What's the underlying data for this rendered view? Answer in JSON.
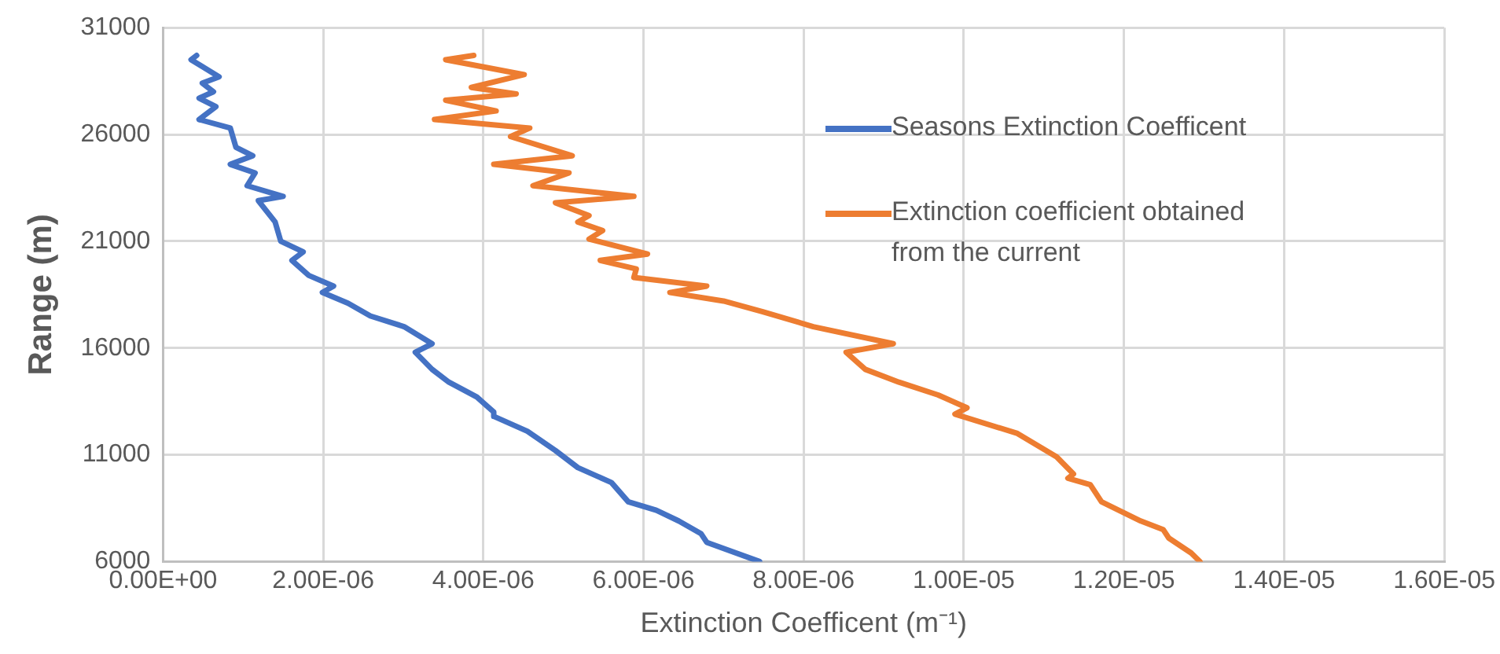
{
  "chart_data": {
    "type": "line",
    "xlabel": "Extinction Coefficent (m⁻¹)",
    "ylabel": "Range (m)",
    "xlim": [
      0,
      1.6e-05
    ],
    "ylim": [
      6000,
      31000
    ],
    "xticks": [
      {
        "value": 0,
        "label": "0.00E+00"
      },
      {
        "value": 2e-06,
        "label": "2.00E-06"
      },
      {
        "value": 4e-06,
        "label": "4.00E-06"
      },
      {
        "value": 6e-06,
        "label": "6.00E-06"
      },
      {
        "value": 8e-06,
        "label": "8.00E-06"
      },
      {
        "value": 1e-05,
        "label": "1.00E-05"
      },
      {
        "value": 1.2e-05,
        "label": "1.20E-05"
      },
      {
        "value": 1.4e-05,
        "label": "1.40E-05"
      },
      {
        "value": 1.6e-05,
        "label": "1.60E-05"
      }
    ],
    "yticks": [
      6000,
      11000,
      16000,
      21000,
      26000,
      31000
    ],
    "grid": true,
    "legend": "right",
    "marker": "none",
    "line_style": "solid",
    "series": [
      {
        "name": "Seasons Extinction Coefficent",
        "color": "#4472c4",
        "x": [
          4.2e-07,
          3.5e-07,
          7e-07,
          4.9e-07,
          6.3e-07,
          4.5e-07,
          6.6e-07,
          4.5e-07,
          8.4e-07,
          9.1e-07,
          1.12e-06,
          8.4e-07,
          1.15e-06,
          1.05e-06,
          1.5e-06,
          1.19e-06,
          1.4e-06,
          1.47e-06,
          1.75e-06,
          1.61e-06,
          1.82e-06,
          2.13e-06,
          1.99e-06,
          2.31e-06,
          2.59e-06,
          3.01e-06,
          3.36e-06,
          3.15e-06,
          3.36e-06,
          3.57e-06,
          3.92e-06,
          4.13e-06,
          4.13e-06,
          4.55e-06,
          4.9e-06,
          5.18e-06,
          5.6e-06,
          5.81e-06,
          6.16e-06,
          6.44e-06,
          6.72e-06,
          6.79e-06,
          7.45e-06
        ],
        "values": [
          29700,
          29500,
          28700,
          28400,
          28000,
          27700,
          27300,
          26700,
          26300,
          25400,
          25000,
          24600,
          24200,
          23600,
          23100,
          22900,
          21900,
          21000,
          20500,
          20100,
          19400,
          18900,
          18600,
          18100,
          17500,
          17000,
          16200,
          15800,
          15000,
          14400,
          13700,
          13000,
          12800,
          12100,
          11200,
          10400,
          9700,
          8800,
          8400,
          7900,
          7300,
          6900,
          6000
        ]
      },
      {
        "name": "Extinction coefficient obtained from the current",
        "color": "#ed7d31",
        "x": [
          3.88e-06,
          3.53e-06,
          4.51e-06,
          3.85e-06,
          4.41e-06,
          3.53e-06,
          4.16e-06,
          3.39e-06,
          4.58e-06,
          4.34e-06,
          5.11e-06,
          4.13e-06,
          5.07e-06,
          4.62e-06,
          5.88e-06,
          4.9e-06,
          5.32e-06,
          5.18e-06,
          5.49e-06,
          5.32e-06,
          6.05e-06,
          5.46e-06,
          5.91e-06,
          5.88e-06,
          6.79e-06,
          6.33e-06,
          7e-06,
          7.49e-06,
          8.12e-06,
          9.12e-06,
          8.53e-06,
          8.77e-06,
          9.19e-06,
          9.68e-06,
          1.004e-05,
          9.89e-06,
          1.067e-05,
          1.116e-05,
          1.137e-05,
          1.13e-05,
          1.158e-05,
          1.172e-05,
          1.221e-05,
          1.249e-05,
          1.256e-05,
          1.284e-05,
          1.295e-05
        ],
        "values": [
          29700,
          29500,
          28800,
          28200,
          27900,
          27600,
          27100,
          26700,
          26300,
          25900,
          25000,
          24600,
          24200,
          23600,
          23100,
          22800,
          22200,
          21900,
          21500,
          21100,
          20400,
          20100,
          19700,
          19300,
          18900,
          18600,
          18200,
          17700,
          17000,
          16200,
          15800,
          15000,
          14400,
          13800,
          13200,
          12900,
          12000,
          10900,
          10100,
          9900,
          9600,
          8800,
          7900,
          7500,
          7100,
          6400,
          6000
        ]
      }
    ]
  }
}
